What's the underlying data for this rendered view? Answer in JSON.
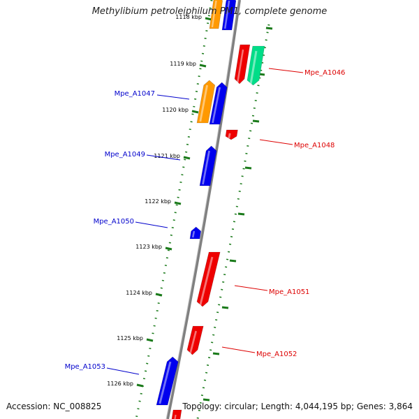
{
  "title": "Methylibium petroleiphilum PM1, complete genome",
  "footer": {
    "accession": "Accession: NC_008825",
    "summary": "Topology: circular; Length: 4,044,195 bp; Genes: 3,864"
  },
  "colors": {
    "forward_label": "#0000cc",
    "reverse_label": "#dd0000",
    "backbone": "#808080",
    "ticks": "#1a7a1a",
    "blue": "#0000ee",
    "red": "#ee0000",
    "orange": "#ff9900",
    "teal": "#00dd88"
  },
  "kbp_ticks": [
    "1118 kbp",
    "1119 kbp",
    "1120 kbp",
    "1121 kbp",
    "1122 kbp",
    "1123 kbp",
    "1124 kbp",
    "1125 kbp",
    "1126 kbp"
  ],
  "genes": [
    {
      "id": "partial-top-orange",
      "label": "",
      "strand": "forward",
      "color": "orange"
    },
    {
      "id": "partial-top-blue",
      "label": "",
      "strand": "forward",
      "color": "blue"
    },
    {
      "id": "Mpe_A1046",
      "label": "Mpe_A1046",
      "strand": "reverse",
      "color": "red"
    },
    {
      "id": "Mpe_A1046-teal",
      "label": "",
      "strand": "reverse",
      "color": "teal"
    },
    {
      "id": "Mpe_A1047",
      "label": "Mpe_A1047",
      "strand": "forward",
      "color": "blue"
    },
    {
      "id": "Mpe_A1047-orange",
      "label": "",
      "strand": "forward",
      "color": "orange"
    },
    {
      "id": "Mpe_A1048",
      "label": "Mpe_A1048",
      "strand": "reverse",
      "color": "red"
    },
    {
      "id": "Mpe_A1049",
      "label": "Mpe_A1049",
      "strand": "forward",
      "color": "blue"
    },
    {
      "id": "Mpe_A1050",
      "label": "Mpe_A1050",
      "strand": "forward",
      "color": "blue"
    },
    {
      "id": "Mpe_A1051",
      "label": "Mpe_A1051",
      "strand": "reverse",
      "color": "red"
    },
    {
      "id": "Mpe_A1052",
      "label": "Mpe_A1052",
      "strand": "reverse",
      "color": "red"
    },
    {
      "id": "Mpe_A1053",
      "label": "Mpe_A1053",
      "strand": "forward",
      "color": "blue"
    },
    {
      "id": "partial-bottom-red",
      "label": "",
      "strand": "reverse",
      "color": "red"
    }
  ]
}
